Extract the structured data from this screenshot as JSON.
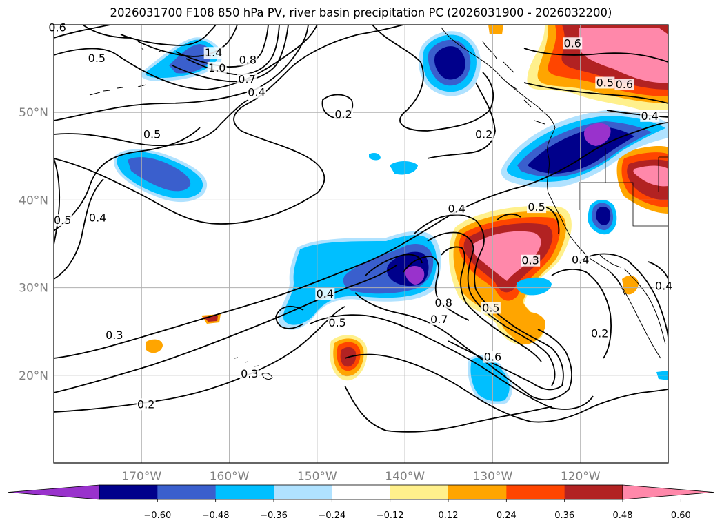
{
  "title": "2026031700 F108 850 hPa PV, river basin precipitation PC (2026031900 - 2026032200)",
  "chart_data": {
    "type": "contour-map",
    "title": "2026031700 F108 850 hPa PV, river basin precipitation PC (2026031900 - 2026032200)",
    "fields": [
      "850 hPa PV (contours)",
      "river basin precipitation PC (filled)"
    ],
    "lon_range": [
      -180,
      -110
    ],
    "lat_range": [
      10,
      60
    ],
    "grid": true,
    "lat_ticks": [
      {
        "value": 20,
        "label": "20°N"
      },
      {
        "value": 30,
        "label": "30°N"
      },
      {
        "value": 40,
        "label": "40°N"
      },
      {
        "value": 50,
        "label": "50°N"
      }
    ],
    "lon_ticks": [
      {
        "value": -170,
        "label": "170°W"
      },
      {
        "value": -160,
        "label": "160°W"
      },
      {
        "value": -150,
        "label": "150°W"
      },
      {
        "value": -140,
        "label": "140°W"
      },
      {
        "value": -130,
        "label": "130°W"
      },
      {
        "value": -120,
        "label": "120°W"
      }
    ],
    "colorbar": {
      "levels": [
        -0.6,
        -0.48,
        -0.36,
        -0.24,
        -0.12,
        0.12,
        0.24,
        0.36,
        0.48,
        0.6
      ],
      "tick_labels": [
        "−0.60",
        "−0.48",
        "−0.36",
        "−0.24",
        "−0.12",
        "0.12",
        "0.24",
        "0.36",
        "0.48",
        "0.60"
      ],
      "colors": [
        "#9932cc",
        "#00008b",
        "#3a5fcd",
        "#00bfff",
        "#b0e2ff",
        "#ffffff",
        "#fff08c",
        "#ffa500",
        "#ff4500",
        "#b22222",
        "#ff88aa"
      ],
      "extend": "both"
    },
    "contour_labels": [
      {
        "text": "0.6",
        "lon": -179.6,
        "lat": 59.5
      },
      {
        "text": "0.5",
        "lon": -175.1,
        "lat": 56.0
      },
      {
        "text": "1.4",
        "lon": -161.8,
        "lat": 56.6
      },
      {
        "text": "1.0",
        "lon": -161.4,
        "lat": 54.9
      },
      {
        "text": "0.8",
        "lon": -157.9,
        "lat": 55.8
      },
      {
        "text": "0.7",
        "lon": -158.0,
        "lat": 53.6
      },
      {
        "text": "0.4",
        "lon": -156.9,
        "lat": 52.1
      },
      {
        "text": "0.2",
        "lon": -147.0,
        "lat": 49.6
      },
      {
        "text": "0.2",
        "lon": -131.0,
        "lat": 47.3
      },
      {
        "text": "0.6",
        "lon": -120.9,
        "lat": 57.7
      },
      {
        "text": "0.5",
        "lon": -117.2,
        "lat": 53.2
      },
      {
        "text": "0.6",
        "lon": -115.0,
        "lat": 53.0
      },
      {
        "text": "0.4",
        "lon": -112.1,
        "lat": 49.4
      },
      {
        "text": "0.5",
        "lon": -168.8,
        "lat": 47.3
      },
      {
        "text": "0.5",
        "lon": -179.0,
        "lat": 37.5
      },
      {
        "text": "0.4",
        "lon": -175.0,
        "lat": 37.8
      },
      {
        "text": "0.4",
        "lon": -134.1,
        "lat": 38.8
      },
      {
        "text": "0.5",
        "lon": -125.0,
        "lat": 39.0
      },
      {
        "text": "0.3",
        "lon": -125.7,
        "lat": 32.9
      },
      {
        "text": "0.4",
        "lon": -120.0,
        "lat": 33.0
      },
      {
        "text": "0.4",
        "lon": -149.1,
        "lat": 29.1
      },
      {
        "text": "0.5",
        "lon": -147.7,
        "lat": 25.8
      },
      {
        "text": "0.8",
        "lon": -135.6,
        "lat": 28.1
      },
      {
        "text": "0.7",
        "lon": -136.1,
        "lat": 26.2
      },
      {
        "text": "0.5",
        "lon": -130.2,
        "lat": 27.5
      },
      {
        "text": "0.3",
        "lon": -173.1,
        "lat": 24.4
      },
      {
        "text": "0.3",
        "lon": -157.7,
        "lat": 20.0
      },
      {
        "text": "0.2",
        "lon": -169.5,
        "lat": 16.5
      },
      {
        "text": "0.6",
        "lon": -130.0,
        "lat": 21.9
      },
      {
        "text": "0.2",
        "lon": -117.8,
        "lat": 24.6
      },
      {
        "text": "0.4",
        "lon": -110.5,
        "lat": 30.0
      }
    ]
  }
}
